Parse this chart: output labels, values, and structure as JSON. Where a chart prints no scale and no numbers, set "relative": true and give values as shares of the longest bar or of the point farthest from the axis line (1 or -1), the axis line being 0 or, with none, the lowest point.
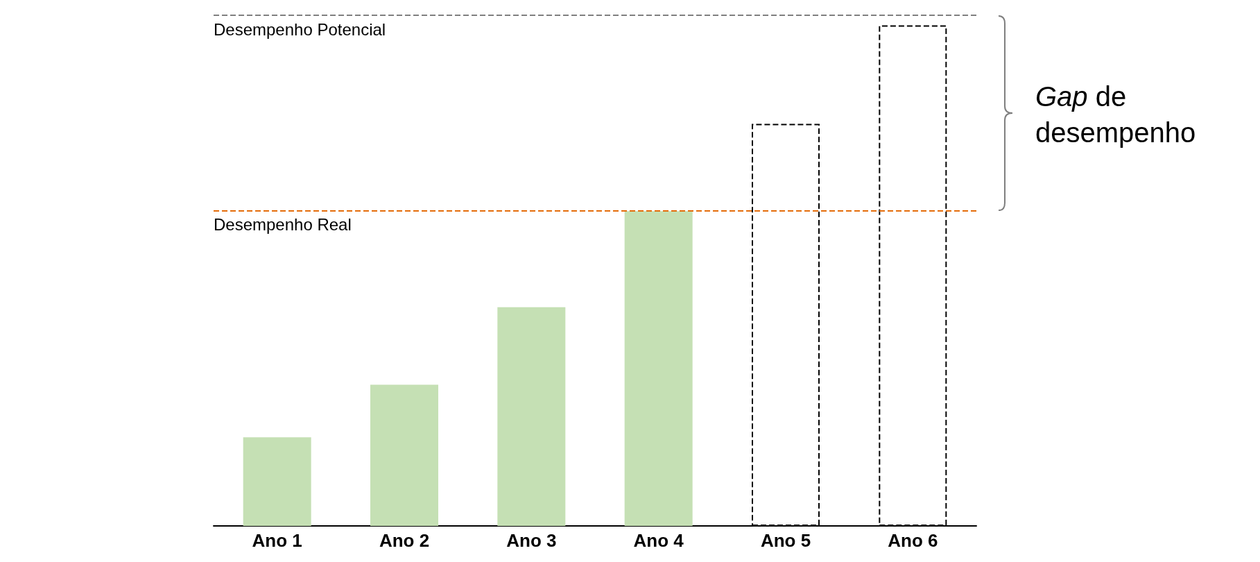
{
  "chart_data": {
    "type": "bar",
    "relative": true,
    "categories": [
      "Ano 1",
      "Ano 2",
      "Ano 3",
      "Ano 4",
      "Ano 5",
      "Ano 6"
    ],
    "series": [
      {
        "color": "#c5e0b4",
        "values": [
          0.177,
          0.282,
          0.437,
          0.629,
          null,
          null
        ]
      },
      {
        "color": "#000000",
        "line_style": "dashed",
        "values": [
          null,
          null,
          null,
          null,
          0.803,
          1
        ]
      }
    ],
    "ref_lines": [
      {
        "axis": "y",
        "value": 1.02,
        "label": "Desempenho Potencial",
        "color": "#7f7f7f",
        "line_style": "dashed"
      },
      {
        "axis": "y",
        "value": 0.629,
        "label": "Desempenho Real",
        "color": "#e46c0a",
        "line_style": "dashed"
      }
    ],
    "annotations": [
      "Gap de desempenho"
    ],
    "grid": false,
    "tick_labels": "x"
  }
}
